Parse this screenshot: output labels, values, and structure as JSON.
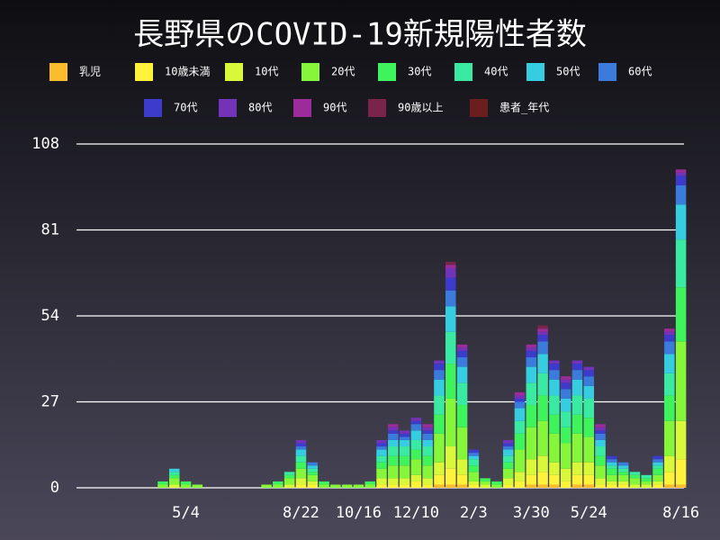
{
  "chart_data": {
    "type": "bar",
    "stacked": true,
    "title": "長野県のCOVID-19新規陽性者数",
    "categories": [
      null,
      null,
      null,
      null,
      null,
      null,
      null,
      null,
      null,
      "5/4",
      null,
      null,
      null,
      null,
      null,
      null,
      null,
      null,
      null,
      "8/22",
      null,
      null,
      null,
      null,
      "10/16",
      null,
      null,
      null,
      null,
      "12/10",
      null,
      null,
      null,
      null,
      "2/3",
      null,
      null,
      null,
      null,
      "3/30",
      null,
      null,
      null,
      null,
      "5/24",
      null,
      null,
      null,
      null,
      null,
      null,
      null,
      "8/16"
    ],
    "ylim": [
      0,
      108
    ],
    "yticks": [
      0,
      27,
      54,
      81,
      108
    ],
    "grid": true,
    "series": [
      {
        "name": "乳児",
        "color": "#fbbd2e",
        "values": [
          0,
          0,
          0,
          0,
          0,
          0,
          0,
          0,
          0,
          0,
          0,
          0,
          0,
          0,
          0,
          0,
          0,
          0,
          0,
          0,
          0,
          0,
          0,
          0,
          0,
          0,
          0,
          0,
          0,
          0,
          0,
          1,
          1,
          1,
          0,
          0,
          0,
          0,
          0,
          1,
          1,
          1,
          0,
          1,
          1,
          0,
          0,
          0,
          0,
          0,
          0,
          1,
          1
        ]
      },
      {
        "name": "10歳未満",
        "color": "#fff23a",
        "values": [
          0,
          0,
          0,
          0,
          0,
          0,
          0,
          0,
          0,
          0,
          0,
          0,
          0,
          0,
          0,
          0,
          0,
          0,
          0,
          1,
          1,
          0,
          0,
          0,
          0,
          0,
          1,
          1,
          1,
          2,
          1,
          3,
          5,
          3,
          1,
          0,
          0,
          1,
          2,
          3,
          4,
          3,
          2,
          3,
          3,
          1,
          1,
          1,
          0,
          0,
          1,
          4,
          8
        ]
      },
      {
        "name": "10代",
        "color": "#d9f83a",
        "values": [
          0,
          0,
          0,
          0,
          0,
          0,
          0,
          0,
          1,
          0,
          0,
          0,
          0,
          0,
          0,
          0,
          0,
          0,
          1,
          2,
          1,
          0,
          0,
          0,
          0,
          0,
          2,
          2,
          2,
          2,
          2,
          4,
          7,
          5,
          1,
          1,
          0,
          2,
          3,
          5,
          5,
          4,
          4,
          4,
          4,
          2,
          1,
          1,
          1,
          1,
          1,
          5,
          12
        ]
      },
      {
        "name": "20代",
        "color": "#86f63a",
        "values": [
          0,
          0,
          0,
          0,
          0,
          0,
          0,
          1,
          2,
          1,
          1,
          0,
          0,
          0,
          0,
          0,
          1,
          1,
          2,
          3,
          2,
          1,
          1,
          1,
          1,
          1,
          3,
          4,
          4,
          5,
          4,
          9,
          15,
          10,
          3,
          1,
          1,
          3,
          7,
          10,
          11,
          9,
          8,
          9,
          8,
          4,
          2,
          2,
          2,
          1,
          2,
          11,
          25
        ]
      },
      {
        "name": "30代",
        "color": "#3ff35c",
        "values": [
          0,
          0,
          0,
          0,
          0,
          0,
          0,
          1,
          1,
          1,
          0,
          0,
          0,
          0,
          0,
          0,
          0,
          1,
          1,
          2,
          1,
          1,
          0,
          0,
          0,
          1,
          2,
          3,
          3,
          3,
          3,
          6,
          11,
          7,
          2,
          1,
          1,
          2,
          5,
          7,
          8,
          6,
          5,
          6,
          6,
          3,
          2,
          1,
          1,
          1,
          2,
          8,
          17
        ]
      },
      {
        "name": "40代",
        "color": "#3aeaa2",
        "values": [
          0,
          0,
          0,
          0,
          0,
          0,
          0,
          0,
          1,
          0,
          0,
          0,
          0,
          0,
          0,
          0,
          0,
          0,
          1,
          2,
          1,
          0,
          0,
          0,
          0,
          0,
          2,
          3,
          3,
          3,
          3,
          6,
          10,
          7,
          2,
          0,
          0,
          2,
          4,
          7,
          7,
          6,
          5,
          6,
          6,
          3,
          1,
          1,
          1,
          1,
          1,
          7,
          15
        ]
      },
      {
        "name": "50代",
        "color": "#36cde0",
        "values": [
          0,
          0,
          0,
          0,
          0,
          0,
          0,
          0,
          1,
          0,
          0,
          0,
          0,
          0,
          0,
          0,
          0,
          0,
          0,
          2,
          1,
          0,
          0,
          0,
          0,
          0,
          2,
          2,
          2,
          3,
          2,
          5,
          8,
          5,
          1,
          0,
          0,
          2,
          4,
          5,
          6,
          5,
          4,
          5,
          4,
          2,
          1,
          1,
          0,
          0,
          1,
          6,
          11
        ]
      },
      {
        "name": "60代",
        "color": "#3b7bdb",
        "values": [
          0,
          0,
          0,
          0,
          0,
          0,
          0,
          0,
          0,
          0,
          0,
          0,
          0,
          0,
          0,
          0,
          0,
          0,
          0,
          1,
          1,
          0,
          0,
          0,
          0,
          0,
          1,
          2,
          1,
          2,
          2,
          3,
          5,
          3,
          1,
          0,
          0,
          1,
          2,
          3,
          4,
          3,
          3,
          3,
          3,
          2,
          1,
          1,
          0,
          0,
          1,
          4,
          6
        ]
      },
      {
        "name": "70代",
        "color": "#3d3bcb",
        "values": [
          0,
          0,
          0,
          0,
          0,
          0,
          0,
          0,
          0,
          0,
          0,
          0,
          0,
          0,
          0,
          0,
          0,
          0,
          0,
          1,
          0,
          0,
          0,
          0,
          0,
          0,
          1,
          1,
          1,
          1,
          1,
          2,
          4,
          2,
          1,
          0,
          0,
          1,
          1,
          2,
          2,
          2,
          2,
          2,
          2,
          1,
          1,
          0,
          0,
          0,
          1,
          2,
          3
        ]
      },
      {
        "name": "80代",
        "color": "#7233b8",
        "values": [
          0,
          0,
          0,
          0,
          0,
          0,
          0,
          0,
          0,
          0,
          0,
          0,
          0,
          0,
          0,
          0,
          0,
          0,
          0,
          1,
          0,
          0,
          0,
          0,
          0,
          0,
          1,
          1,
          1,
          1,
          1,
          1,
          3,
          1,
          0,
          0,
          0,
          1,
          1,
          1,
          1,
          1,
          1,
          1,
          1,
          1,
          0,
          0,
          0,
          0,
          0,
          1,
          1
        ]
      },
      {
        "name": "90代",
        "color": "#9c2b9b",
        "values": [
          0,
          0,
          0,
          0,
          0,
          0,
          0,
          0,
          0,
          0,
          0,
          0,
          0,
          0,
          0,
          0,
          0,
          0,
          0,
          0,
          0,
          0,
          0,
          0,
          0,
          0,
          0,
          1,
          0,
          0,
          1,
          0,
          1,
          1,
          0,
          0,
          0,
          0,
          1,
          1,
          1,
          0,
          1,
          0,
          0,
          1,
          0,
          0,
          0,
          0,
          0,
          1,
          1
        ]
      },
      {
        "name": "90歳以上",
        "color": "#7a2449",
        "values": [
          0,
          0,
          0,
          0,
          0,
          0,
          0,
          0,
          0,
          0,
          0,
          0,
          0,
          0,
          0,
          0,
          0,
          0,
          0,
          0,
          0,
          0,
          0,
          0,
          0,
          0,
          0,
          0,
          0,
          0,
          0,
          0,
          1,
          0,
          0,
          0,
          0,
          0,
          0,
          0,
          1,
          0,
          0,
          0,
          0,
          0,
          0,
          0,
          0,
          0,
          0,
          0,
          0
        ]
      },
      {
        "name": "患者_年代",
        "color": "#6b1e1e",
        "values": [
          0,
          0,
          0,
          0,
          0,
          0,
          0,
          0,
          0,
          0,
          0,
          0,
          0,
          0,
          0,
          0,
          0,
          0,
          0,
          0,
          0,
          0,
          0,
          0,
          0,
          0,
          0,
          0,
          0,
          0,
          0,
          0,
          0,
          0,
          0,
          0,
          0,
          0,
          0,
          0,
          0,
          0,
          0,
          0,
          0,
          0,
          0,
          0,
          0,
          0,
          0,
          0,
          0
        ]
      }
    ]
  }
}
